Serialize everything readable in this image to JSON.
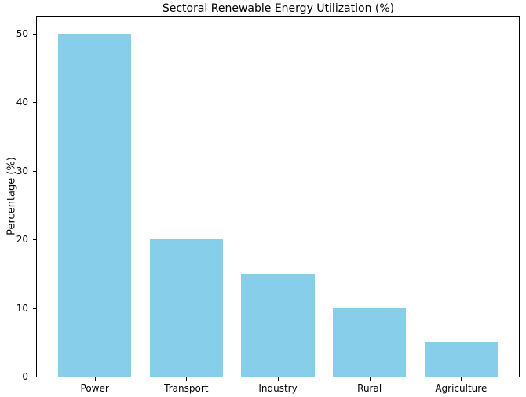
{
  "chart_data": {
    "type": "bar",
    "title": "Sectoral Renewable Energy Utilization (%)",
    "xlabel": "",
    "ylabel": "Percentage (%)",
    "categories": [
      "Power",
      "Transport",
      "Industry",
      "Rural",
      "Agriculture"
    ],
    "values": [
      50,
      20,
      15,
      10,
      5
    ],
    "yticks": [
      0,
      10,
      20,
      30,
      40,
      50
    ],
    "ylim": [
      0,
      52.5
    ],
    "bar_color": "#87CEEB",
    "background_color": "#ffffff",
    "spine_color": "#000000",
    "grid": false,
    "legend": "none"
  }
}
